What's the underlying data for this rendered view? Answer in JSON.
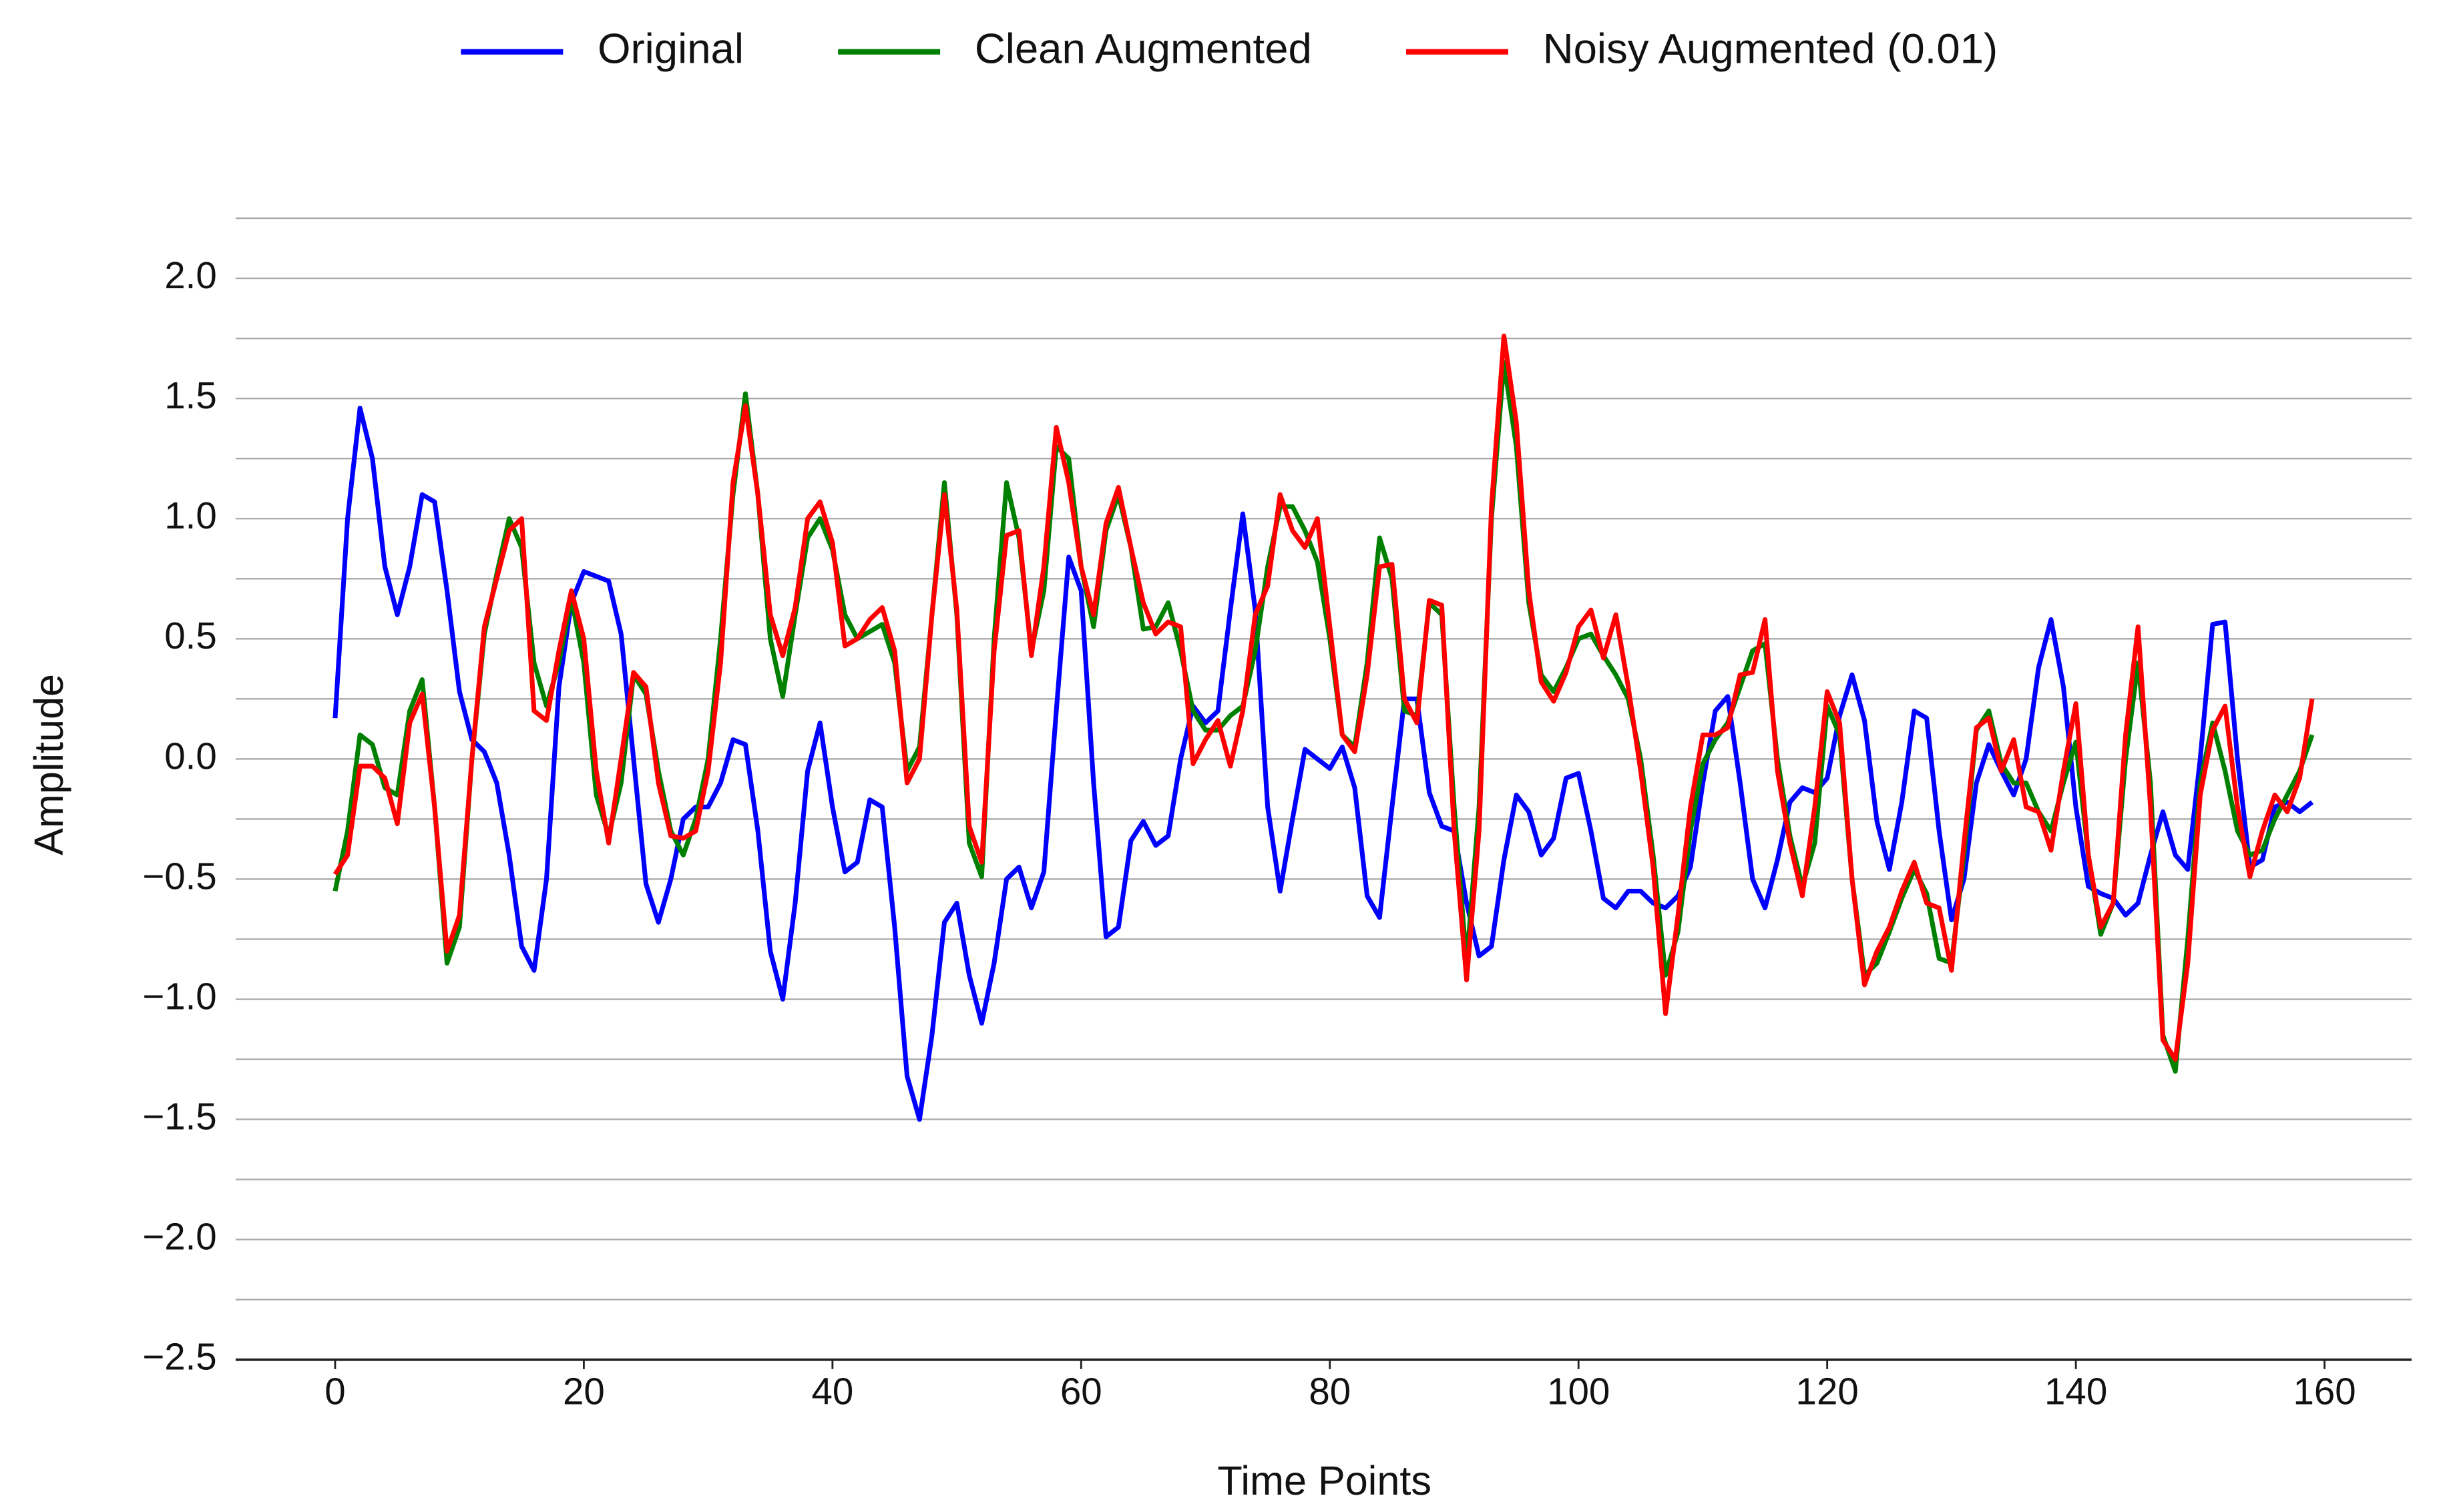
{
  "chart_data": {
    "type": "line",
    "xlabel": "Time Points",
    "ylabel": "Amplitude",
    "legend": "top",
    "grid": true,
    "xlim": [
      -8,
      167
    ],
    "xticks": [
      0,
      20,
      40,
      60,
      80,
      100,
      120,
      140,
      160
    ],
    "ylim": [
      -2.5,
      2.25
    ],
    "yticks": [
      {
        "value": -2.5,
        "label": "−2.5"
      },
      {
        "value": -2,
        "label": "−2.0"
      },
      {
        "value": -1.5,
        "label": "−1.5"
      },
      {
        "value": -1,
        "label": "−1.0"
      },
      {
        "value": -0.5,
        "label": "−0.5"
      },
      {
        "value": 0,
        "label": "0.0"
      },
      {
        "value": 0.5,
        "label": "0.5"
      },
      {
        "value": 1,
        "label": "1.0"
      },
      {
        "value": 1.5,
        "label": "1.5"
      },
      {
        "value": 2,
        "label": "2.0"
      }
    ],
    "y_minor_ticks": [
      -2.25,
      -1.75,
      -1.25,
      -0.75,
      -0.25,
      0.25,
      0.75,
      1.25,
      1.75,
      2.25
    ],
    "x": [
      0,
      1,
      2,
      3,
      4,
      5,
      6,
      7,
      8,
      9,
      10,
      11,
      12,
      13,
      14,
      15,
      16,
      17,
      18,
      19,
      20,
      21,
      22,
      23,
      24,
      25,
      26,
      27,
      28,
      29,
      30,
      31,
      32,
      33,
      34,
      35,
      36,
      37,
      38,
      39,
      40,
      41,
      42,
      43,
      44,
      45,
      46,
      47,
      48,
      49,
      50,
      51,
      52,
      53,
      54,
      55,
      56,
      57,
      58,
      59,
      60,
      61,
      62,
      63,
      64,
      65,
      66,
      67,
      68,
      69,
      70,
      71,
      72,
      73,
      74,
      75,
      76,
      77,
      78,
      79,
      80,
      81,
      82,
      83,
      84,
      85,
      86,
      87,
      88,
      89,
      90,
      91,
      92,
      93,
      94,
      95,
      96,
      97,
      98,
      99,
      100,
      101,
      102,
      103,
      104,
      105,
      106,
      107,
      108,
      109,
      110,
      111,
      112,
      113,
      114,
      115,
      116,
      117,
      118,
      119,
      120,
      121,
      122,
      123,
      124,
      125,
      126,
      127,
      128,
      129,
      130,
      131,
      132,
      133,
      134,
      135,
      136,
      137,
      138,
      139,
      140,
      141,
      142,
      143,
      144,
      145,
      146,
      147,
      148,
      149,
      150,
      151,
      152,
      153,
      154,
      155,
      156,
      157,
      158,
      159
    ],
    "series": [
      {
        "name": "Original",
        "color": "#0000ff",
        "values": [
          0.17,
          1.0,
          1.46,
          1.25,
          0.8,
          0.6,
          0.8,
          1.1,
          1.07,
          0.7,
          0.28,
          0.08,
          0.03,
          -0.1,
          -0.4,
          -0.78,
          -0.88,
          -0.5,
          0.3,
          0.65,
          0.78,
          0.76,
          0.74,
          0.52,
          0.0,
          -0.52,
          -0.68,
          -0.5,
          -0.25,
          -0.2,
          -0.2,
          -0.1,
          0.08,
          0.06,
          -0.3,
          -0.8,
          -1.0,
          -0.6,
          -0.05,
          0.15,
          -0.2,
          -0.47,
          -0.43,
          -0.17,
          -0.2,
          -0.7,
          -1.32,
          -1.5,
          -1.15,
          -0.68,
          -0.6,
          -0.9,
          -1.1,
          -0.85,
          -0.5,
          -0.45,
          -0.62,
          -0.47,
          0.2,
          0.84,
          0.7,
          -0.1,
          -0.74,
          -0.7,
          -0.34,
          -0.26,
          -0.36,
          -0.32,
          0.0,
          0.22,
          0.15,
          0.2,
          0.62,
          1.02,
          0.62,
          -0.2,
          -0.55,
          -0.25,
          0.04,
          0.0,
          -0.04,
          0.05,
          -0.12,
          -0.57,
          -0.66,
          -0.2,
          0.25,
          0.25,
          -0.14,
          -0.28,
          -0.3,
          -0.6,
          -0.82,
          -0.78,
          -0.42,
          -0.15,
          -0.22,
          -0.4,
          -0.33,
          -0.08,
          -0.06,
          -0.3,
          -0.58,
          -0.62,
          -0.55,
          -0.55,
          -0.6,
          -0.62,
          -0.57,
          -0.45,
          -0.1,
          0.2,
          0.26,
          -0.1,
          -0.5,
          -0.62,
          -0.42,
          -0.18,
          -0.12,
          -0.14,
          -0.08,
          0.18,
          0.35,
          0.16,
          -0.26,
          -0.46,
          -0.18,
          0.2,
          0.17,
          -0.3,
          -0.67,
          -0.5,
          -0.1,
          0.06,
          -0.05,
          -0.15,
          0.0,
          0.38,
          0.58,
          0.3,
          -0.2,
          -0.53,
          -0.56,
          -0.58,
          -0.65,
          -0.6,
          -0.4,
          -0.22,
          -0.4,
          -0.46,
          0.0,
          0.56,
          0.57,
          0.0,
          -0.45,
          -0.42,
          -0.2,
          -0.18,
          -0.22,
          -0.18
        ]
      },
      {
        "name": "Clean Augmented",
        "color": "#008000",
        "values": [
          -0.55,
          -0.3,
          0.1,
          0.06,
          -0.12,
          -0.15,
          0.2,
          0.33,
          -0.2,
          -0.85,
          -0.7,
          0.0,
          0.52,
          0.77,
          1.0,
          0.88,
          0.4,
          0.22,
          0.4,
          0.67,
          0.4,
          -0.15,
          -0.32,
          -0.1,
          0.35,
          0.27,
          -0.05,
          -0.3,
          -0.4,
          -0.25,
          0.0,
          0.5,
          1.1,
          1.52,
          1.1,
          0.5,
          0.26,
          0.6,
          0.92,
          1.0,
          0.87,
          0.6,
          0.5,
          0.53,
          0.56,
          0.4,
          -0.05,
          0.05,
          0.6,
          1.15,
          0.6,
          -0.35,
          -0.49,
          0.5,
          1.15,
          0.92,
          0.45,
          0.7,
          1.3,
          1.25,
          0.8,
          0.55,
          0.95,
          1.1,
          0.88,
          0.54,
          0.55,
          0.65,
          0.45,
          0.2,
          0.12,
          0.12,
          0.18,
          0.22,
          0.45,
          0.8,
          1.05,
          1.05,
          0.95,
          0.82,
          0.5,
          0.1,
          0.05,
          0.4,
          0.92,
          0.75,
          0.2,
          0.18,
          0.65,
          0.6,
          -0.2,
          -0.85,
          -0.2,
          1.0,
          1.65,
          1.3,
          0.65,
          0.35,
          0.28,
          0.38,
          0.5,
          0.52,
          0.43,
          0.35,
          0.25,
          0.0,
          -0.4,
          -0.9,
          -0.72,
          -0.3,
          -0.02,
          0.08,
          0.15,
          0.3,
          0.45,
          0.48,
          0.0,
          -0.32,
          -0.53,
          -0.35,
          0.22,
          0.1,
          -0.5,
          -0.9,
          -0.85,
          -0.72,
          -0.58,
          -0.46,
          -0.56,
          -0.83,
          -0.85,
          -0.4,
          0.12,
          0.2,
          -0.02,
          -0.1,
          -0.1,
          -0.22,
          -0.3,
          -0.1,
          0.07,
          -0.4,
          -0.73,
          -0.6,
          0.0,
          0.4,
          -0.1,
          -1.15,
          -1.3,
          -0.75,
          -0.1,
          0.15,
          -0.05,
          -0.3,
          -0.4,
          -0.38,
          -0.25,
          -0.15,
          -0.05,
          0.1
        ]
      },
      {
        "name": "Noisy Augmented (0.01)",
        "color": "#ff0000",
        "values": [
          -0.48,
          -0.4,
          -0.03,
          -0.03,
          -0.08,
          -0.27,
          0.15,
          0.27,
          -0.2,
          -0.8,
          -0.65,
          0.0,
          0.55,
          0.75,
          0.95,
          1.0,
          0.2,
          0.16,
          0.45,
          0.7,
          0.5,
          -0.05,
          -0.35,
          0.0,
          0.36,
          0.3,
          -0.1,
          -0.32,
          -0.33,
          -0.3,
          -0.05,
          0.4,
          1.15,
          1.47,
          1.1,
          0.6,
          0.43,
          0.63,
          1.0,
          1.07,
          0.9,
          0.47,
          0.5,
          0.58,
          0.63,
          0.45,
          -0.1,
          0.0,
          0.6,
          1.1,
          0.62,
          -0.28,
          -0.43,
          0.45,
          0.93,
          0.95,
          0.43,
          0.8,
          1.38,
          1.15,
          0.8,
          0.6,
          0.98,
          1.13,
          0.88,
          0.65,
          0.52,
          0.57,
          0.55,
          -0.02,
          0.08,
          0.16,
          -0.03,
          0.2,
          0.6,
          0.72,
          1.1,
          0.95,
          0.88,
          1.0,
          0.55,
          0.1,
          0.03,
          0.35,
          0.8,
          0.81,
          0.25,
          0.15,
          0.66,
          0.64,
          -0.3,
          -0.92,
          -0.3,
          1.05,
          1.76,
          1.4,
          0.7,
          0.32,
          0.24,
          0.36,
          0.55,
          0.62,
          0.42,
          0.6,
          0.3,
          -0.05,
          -0.45,
          -1.06,
          -0.65,
          -0.2,
          0.1,
          0.1,
          0.13,
          0.35,
          0.36,
          0.58,
          -0.05,
          -0.35,
          -0.57,
          -0.2,
          0.28,
          0.15,
          -0.5,
          -0.94,
          -0.8,
          -0.7,
          -0.55,
          -0.43,
          -0.6,
          -0.62,
          -0.88,
          -0.35,
          0.13,
          0.17,
          -0.05,
          0.08,
          -0.2,
          -0.22,
          -0.38,
          -0.05,
          0.23,
          -0.4,
          -0.7,
          -0.6,
          0.1,
          0.55,
          -0.2,
          -1.17,
          -1.25,
          -0.85,
          -0.15,
          0.12,
          0.22,
          -0.2,
          -0.49,
          -0.3,
          -0.15,
          -0.22,
          -0.08,
          0.25
        ]
      }
    ]
  }
}
